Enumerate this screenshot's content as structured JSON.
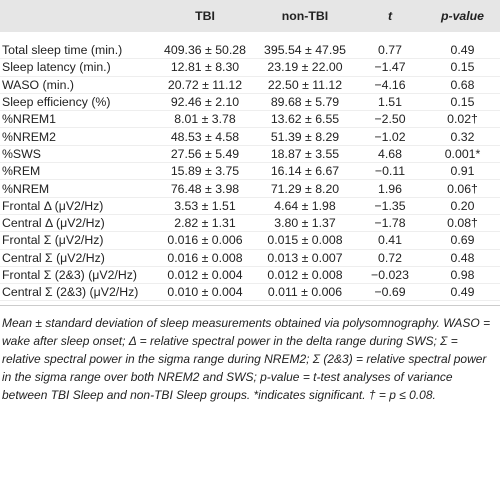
{
  "table": {
    "header": [
      "",
      "TBI",
      "non-TBI",
      "t",
      "p-value"
    ],
    "rows": [
      [
        "Total sleep time (min.)",
        "409.36 ± 50.28",
        "395.54 ± 47.95",
        "0.77",
        "0.49"
      ],
      [
        "Sleep latency (min.)",
        "12.81 ± 8.30",
        "23.19 ± 22.00",
        "−1.47",
        "0.15"
      ],
      [
        "WASO (min.)",
        "20.72 ± 11.12",
        "22.50 ± 11.12",
        "−4.16",
        "0.68"
      ],
      [
        "Sleep efficiency (%)",
        "92.46 ± 2.10",
        "89.68 ± 5.79",
        "1.51",
        "0.15"
      ],
      [
        "%NREM1",
        "8.01 ± 3.78",
        "13.62 ± 6.55",
        "−2.50",
        "0.02†"
      ],
      [
        "%NREM2",
        "48.53 ± 4.58",
        "51.39 ± 8.29",
        "−1.02",
        "0.32"
      ],
      [
        "%SWS",
        "27.56 ± 5.49",
        "18.87 ± 3.55",
        "4.68",
        "0.001*"
      ],
      [
        "%REM",
        "15.89 ± 3.75",
        "16.14 ± 6.67",
        "−0.11",
        "0.91"
      ],
      [
        "%NREM",
        "76.48 ± 3.98",
        "71.29 ± 8.20",
        "1.96",
        "0.06†"
      ],
      [
        "Frontal Δ (μV2/Hz)",
        "3.53 ± 1.51",
        "4.64 ± 1.98",
        "−1.35",
        "0.20"
      ],
      [
        "Central Δ (μV2/Hz)",
        "2.82 ± 1.31",
        "3.80 ± 1.37",
        "−1.78",
        "0.08†"
      ],
      [
        "Frontal Σ (μV2/Hz)",
        "0.016 ± 0.006",
        "0.015 ± 0.008",
        "0.41",
        "0.69"
      ],
      [
        "Central Σ (μV2/Hz)",
        "0.016 ± 0.008",
        "0.013 ± 0.007",
        "0.72",
        "0.48"
      ],
      [
        "Frontal Σ (2&3) (μV2/Hz)",
        "0.012 ± 0.004",
        "0.012 ± 0.008",
        "−0.023",
        "0.98"
      ],
      [
        "Central Σ (2&3) (μV2/Hz)",
        "0.010 ± 0.004",
        "0.011 ± 0.006",
        "−0.69",
        "0.49"
      ]
    ]
  },
  "footnote": "Mean ± standard deviation of sleep measurements obtained via polysomnography. WASO = wake after sleep onset; Δ = relative spectral power in the delta range during SWS; Σ = relative spectral power in the sigma range during NREM2; Σ (2&3) = relative spectral power in the sigma range over both NREM2 and SWS; p-value = t-test analyses of variance between TBI Sleep and non-TBI Sleep groups. *indicates significant. † = p ≤ 0.08."
}
